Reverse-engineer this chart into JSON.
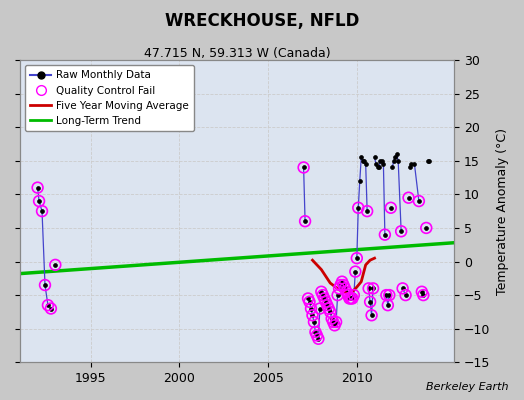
{
  "title": "WRECKHOUSE, NFLD",
  "subtitle": "47.715 N, 59.313 W (Canada)",
  "ylabel": "Temperature Anomaly (°C)",
  "attribution": "Berkeley Earth",
  "xlim": [
    1991.0,
    2015.5
  ],
  "ylim": [
    -15,
    30
  ],
  "yticks": [
    -15,
    -10,
    -5,
    0,
    5,
    10,
    15,
    20,
    25,
    30
  ],
  "xticks": [
    1995,
    2000,
    2005,
    2010
  ],
  "fig_bg_color": "#c8c8c8",
  "plot_bg_color": "#dce4f0",
  "raw_segments": [
    [
      [
        1992.0,
        11.0
      ],
      [
        1992.083,
        9.0
      ],
      [
        1992.25,
        7.5
      ],
      [
        1992.417,
        -3.5
      ],
      [
        1992.583,
        -6.5
      ],
      [
        1992.75,
        -7.0
      ]
    ],
    [
      [
        1993.0,
        -0.5
      ]
    ],
    [
      [
        2007.0,
        14.0
      ],
      [
        2007.083,
        6.0
      ]
    ],
    [
      [
        2007.25,
        -5.5
      ],
      [
        2007.333,
        -6.0
      ],
      [
        2007.417,
        -7.0
      ],
      [
        2007.5,
        -8.0
      ],
      [
        2007.583,
        -9.0
      ],
      [
        2007.667,
        -10.5
      ],
      [
        2007.75,
        -11.0
      ],
      [
        2007.833,
        -11.5
      ],
      [
        2007.917,
        -7.0
      ]
    ],
    [
      [
        2008.0,
        -4.5
      ],
      [
        2008.083,
        -5.0
      ],
      [
        2008.167,
        -5.5
      ],
      [
        2008.25,
        -6.0
      ],
      [
        2008.333,
        -6.5
      ],
      [
        2008.417,
        -7.0
      ],
      [
        2008.5,
        -7.5
      ],
      [
        2008.583,
        -8.5
      ],
      [
        2008.667,
        -9.0
      ],
      [
        2008.75,
        -9.5
      ],
      [
        2008.833,
        -9.0
      ],
      [
        2008.917,
        -5.0
      ]
    ],
    [
      [
        2009.0,
        -4.0
      ],
      [
        2009.083,
        -3.5
      ],
      [
        2009.167,
        -3.0
      ],
      [
        2009.25,
        -3.5
      ],
      [
        2009.333,
        -4.0
      ],
      [
        2009.417,
        -4.5
      ],
      [
        2009.5,
        -5.0
      ],
      [
        2009.583,
        -5.5
      ],
      [
        2009.667,
        -5.5
      ],
      [
        2009.75,
        -5.5
      ],
      [
        2009.833,
        -5.0
      ],
      [
        2009.917,
        -1.5
      ]
    ],
    [
      [
        2010.0,
        0.5
      ],
      [
        2010.083,
        8.0
      ],
      [
        2010.167,
        12.0
      ],
      [
        2010.25,
        15.5
      ],
      [
        2010.333,
        15.0
      ],
      [
        2010.417,
        15.0
      ],
      [
        2010.5,
        14.5
      ],
      [
        2010.583,
        7.5
      ]
    ],
    [
      [
        2010.667,
        -4.0
      ],
      [
        2010.75,
        -6.0
      ],
      [
        2010.833,
        -8.0
      ],
      [
        2010.917,
        -4.0
      ]
    ],
    [
      [
        2011.0,
        15.5
      ],
      [
        2011.083,
        14.5
      ],
      [
        2011.167,
        14.0
      ],
      [
        2011.25,
        14.0
      ],
      [
        2011.333,
        15.0
      ],
      [
        2011.417,
        15.0
      ],
      [
        2011.5,
        14.5
      ],
      [
        2011.583,
        4.0
      ]
    ],
    [
      [
        2011.667,
        -5.0
      ],
      [
        2011.75,
        -6.5
      ],
      [
        2011.833,
        -5.0
      ]
    ],
    [
      [
        2011.917,
        8.0
      ]
    ],
    [
      [
        2012.0,
        14.0
      ],
      [
        2012.083,
        15.0
      ],
      [
        2012.167,
        15.5
      ],
      [
        2012.25,
        16.0
      ],
      [
        2012.333,
        15.0
      ],
      [
        2012.5,
        4.5
      ]
    ],
    [
      [
        2012.583,
        -4.0
      ],
      [
        2012.75,
        -5.0
      ]
    ],
    [
      [
        2012.917,
        9.5
      ]
    ],
    [
      [
        2013.0,
        14.0
      ],
      [
        2013.083,
        14.5
      ],
      [
        2013.25,
        14.5
      ],
      [
        2013.5,
        9.0
      ]
    ],
    [
      [
        2013.667,
        -4.5
      ],
      [
        2013.75,
        -5.0
      ]
    ],
    [
      [
        2013.917,
        5.0
      ]
    ],
    [
      [
        2014.0,
        15.0
      ],
      [
        2014.083,
        15.0
      ]
    ]
  ],
  "qc_fail_data": [
    [
      1992.0,
      11.0
    ],
    [
      1992.083,
      9.0
    ],
    [
      1992.25,
      7.5
    ],
    [
      1992.417,
      -3.5
    ],
    [
      1992.583,
      -6.5
    ],
    [
      1992.75,
      -7.0
    ],
    [
      1993.0,
      -0.5
    ],
    [
      2007.0,
      14.0
    ],
    [
      2007.083,
      6.0
    ],
    [
      2007.25,
      -5.5
    ],
    [
      2007.333,
      -6.0
    ],
    [
      2007.417,
      -7.0
    ],
    [
      2007.5,
      -8.0
    ],
    [
      2007.583,
      -9.0
    ],
    [
      2007.667,
      -10.5
    ],
    [
      2007.75,
      -11.0
    ],
    [
      2007.833,
      -11.5
    ],
    [
      2007.917,
      -7.0
    ],
    [
      2008.0,
      -4.5
    ],
    [
      2008.083,
      -5.0
    ],
    [
      2008.167,
      -5.5
    ],
    [
      2008.25,
      -6.0
    ],
    [
      2008.333,
      -6.5
    ],
    [
      2008.417,
      -7.0
    ],
    [
      2008.5,
      -7.5
    ],
    [
      2008.583,
      -8.5
    ],
    [
      2008.667,
      -9.0
    ],
    [
      2008.75,
      -9.5
    ],
    [
      2008.833,
      -9.0
    ],
    [
      2008.917,
      -5.0
    ],
    [
      2009.0,
      -4.0
    ],
    [
      2009.083,
      -3.5
    ],
    [
      2009.167,
      -3.0
    ],
    [
      2009.25,
      -3.5
    ],
    [
      2009.333,
      -4.0
    ],
    [
      2009.417,
      -4.5
    ],
    [
      2009.5,
      -5.0
    ],
    [
      2009.583,
      -5.5
    ],
    [
      2009.667,
      -5.5
    ],
    [
      2009.75,
      -5.5
    ],
    [
      2009.833,
      -5.0
    ],
    [
      2009.917,
      -1.5
    ],
    [
      2010.0,
      0.5
    ],
    [
      2010.083,
      8.0
    ],
    [
      2010.583,
      7.5
    ],
    [
      2010.667,
      -4.0
    ],
    [
      2010.75,
      -6.0
    ],
    [
      2010.833,
      -8.0
    ],
    [
      2010.917,
      -4.0
    ],
    [
      2011.583,
      4.0
    ],
    [
      2011.667,
      -5.0
    ],
    [
      2011.75,
      -6.5
    ],
    [
      2011.833,
      -5.0
    ],
    [
      2011.917,
      8.0
    ],
    [
      2012.5,
      4.5
    ],
    [
      2012.583,
      -4.0
    ],
    [
      2012.75,
      -5.0
    ],
    [
      2012.917,
      9.5
    ],
    [
      2013.5,
      9.0
    ],
    [
      2013.667,
      -4.5
    ],
    [
      2013.75,
      -5.0
    ],
    [
      2013.917,
      5.0
    ]
  ],
  "moving_avg": [
    [
      2007.5,
      0.2
    ],
    [
      2008.0,
      -1.2
    ],
    [
      2008.5,
      -3.2
    ],
    [
      2009.0,
      -4.2
    ],
    [
      2009.5,
      -4.8
    ],
    [
      2009.75,
      -4.5
    ],
    [
      2010.0,
      -3.8
    ],
    [
      2010.25,
      -3.0
    ],
    [
      2010.5,
      -0.5
    ],
    [
      2010.75,
      0.2
    ],
    [
      2011.0,
      0.5
    ]
  ],
  "trend_x": [
    1991.0,
    2015.5
  ],
  "trend_y": [
    -1.8,
    2.8
  ],
  "raw_line_color": "#4444cc",
  "raw_marker_color": "#000000",
  "qc_color": "#ff00ff",
  "mavg_color": "#cc0000",
  "trend_color": "#00bb00",
  "grid_color": "#cccccc"
}
